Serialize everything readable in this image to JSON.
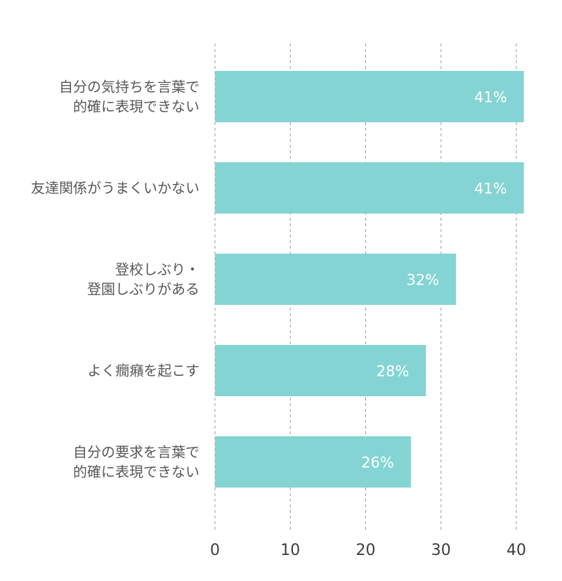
{
  "chart_data": {
    "type": "bar",
    "orientation": "horizontal",
    "categories": [
      [
        "自分の気持ちを言葉で",
        "的確に表現できない"
      ],
      [
        "友達関係がうまくいかない"
      ],
      [
        "登校しぶり・",
        "登園しぶりがある"
      ],
      [
        "よく癇癪を起こす"
      ],
      [
        "自分の要求を言葉で",
        "的確に表現できない"
      ]
    ],
    "values": [
      41,
      41,
      32,
      28,
      26
    ],
    "value_labels": [
      "41%",
      "41%",
      "32%",
      "28%",
      "26%"
    ],
    "x_ticks": [
      "0",
      "10",
      "20",
      "30",
      "40"
    ],
    "xlim": [
      0,
      40
    ],
    "grid": "vertical-dashed",
    "bar_color": "#84D4D4",
    "grid_color": "#9a9a9a",
    "label_color": "#595757",
    "value_label_color": "#ffffff"
  }
}
